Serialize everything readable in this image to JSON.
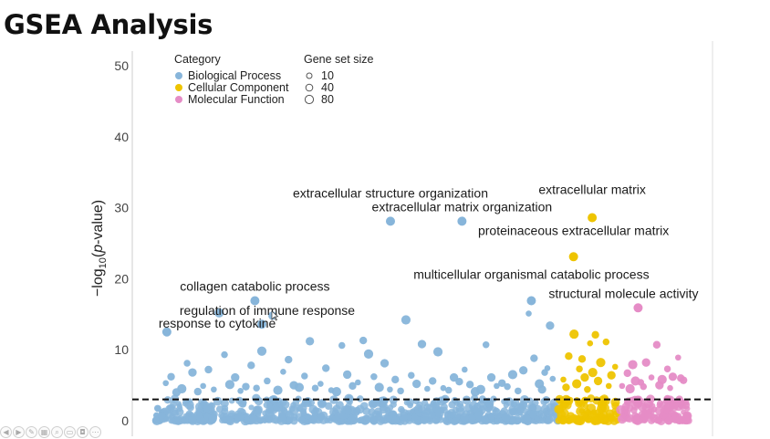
{
  "slide": {
    "title": "GSEA Analysis"
  },
  "colors": {
    "biological_process": "#87b5da",
    "cellular_component": "#eec400",
    "molecular_function": "#e58cc6",
    "threshold_line": "#111111",
    "axis_text": "#444444"
  },
  "player_controls": [
    {
      "name": "previous-icon",
      "glyph": "◀"
    },
    {
      "name": "next-icon",
      "glyph": "▶"
    },
    {
      "name": "pen-icon",
      "glyph": "✎"
    },
    {
      "name": "slides-icon",
      "glyph": "▦"
    },
    {
      "name": "zoom-icon",
      "glyph": "⌕"
    },
    {
      "name": "subtitles-icon",
      "glyph": "▭"
    },
    {
      "name": "camera-icon",
      "glyph": "◘"
    },
    {
      "name": "more-icon",
      "glyph": "⋯"
    }
  ],
  "chart_data": {
    "type": "scatter",
    "title": "",
    "xlabel": "",
    "ylabel_parts": {
      "prefix": "−log",
      "subscript": "10",
      "open": "(",
      "italic": "p",
      "suffix": "-value)"
    },
    "ylim": [
      0,
      50
    ],
    "yticks": [
      "0",
      "10",
      "20",
      "30",
      "40",
      "50"
    ],
    "threshold_y": 3,
    "grid": false,
    "legend": {
      "placement": "top-left",
      "category_title": "Category",
      "categories": [
        "Biological Process",
        "Cellular Component",
        "Molecular Function"
      ],
      "size_title": "Gene set size",
      "sizes": [
        "10",
        "40",
        "80"
      ]
    },
    "groups": [
      {
        "name": "Biological Process",
        "x_range": [
          0,
          0.755
        ],
        "color_key": "biological_process"
      },
      {
        "name": "Cellular Component",
        "x_range": [
          0.755,
          0.868
        ],
        "color_key": "cellular_component"
      },
      {
        "name": "Molecular Function",
        "x_range": [
          0.868,
          1.0
        ],
        "color_key": "molecular_function"
      }
    ],
    "highlighted": [
      {
        "label": "extracellular structure organization",
        "category": "Biological Process",
        "x": 0.441,
        "y": 28.1
      },
      {
        "label": "extracellular matrix organization",
        "category": "Biological Process",
        "x": 0.575,
        "y": 28.1
      },
      {
        "label": "extracellular matrix",
        "category": "Cellular Component",
        "x": 0.819,
        "y": 28.6
      },
      {
        "label": "proteinaceous extracellular matrix",
        "category": "Cellular Component",
        "x": 0.784,
        "y": 23.1
      },
      {
        "label": "multicellular organismal catabolic process",
        "category": "Biological Process",
        "x": 0.705,
        "y": 16.9
      },
      {
        "label": "structural molecule activity",
        "category": "Molecular Function",
        "x": 0.905,
        "y": 15.9
      },
      {
        "label": "collagen catabolic process",
        "category": "Biological Process",
        "x": 0.187,
        "y": 16.9
      },
      {
        "label": "response to cytokine",
        "category": "Biological Process",
        "x": 0.022,
        "y": 12.5
      },
      {
        "label": "regulation of immune response",
        "category": "Biological Process",
        "x": 0.2,
        "y": 13.6
      }
    ],
    "background_points": {
      "Biological Process": [
        [
          0.02,
          5.3
        ],
        [
          0.03,
          6.2
        ],
        [
          0.05,
          4.5
        ],
        [
          0.06,
          8.1
        ],
        [
          0.07,
          6.8
        ],
        [
          0.09,
          4.9
        ],
        [
          0.1,
          7.2
        ],
        [
          0.12,
          15.2
        ],
        [
          0.13,
          9.3
        ],
        [
          0.15,
          6.1
        ],
        [
          0.16,
          4.2
        ],
        [
          0.18,
          7.8
        ],
        [
          0.2,
          9.8
        ],
        [
          0.21,
          5.6
        ],
        [
          0.22,
          14.8
        ],
        [
          0.24,
          6.9
        ],
        [
          0.25,
          8.6
        ],
        [
          0.27,
          4.7
        ],
        [
          0.28,
          6.3
        ],
        [
          0.29,
          11.2
        ],
        [
          0.31,
          5.2
        ],
        [
          0.32,
          7.4
        ],
        [
          0.34,
          4.1
        ],
        [
          0.35,
          10.6
        ],
        [
          0.36,
          6.5
        ],
        [
          0.38,
          5.4
        ],
        [
          0.39,
          11.3
        ],
        [
          0.4,
          9.4
        ],
        [
          0.41,
          6.2
        ],
        [
          0.43,
          8.1
        ],
        [
          0.44,
          4.4
        ],
        [
          0.45,
          5.8
        ],
        [
          0.47,
          14.2
        ],
        [
          0.48,
          6.4
        ],
        [
          0.5,
          10.8
        ],
        [
          0.51,
          4.5
        ],
        [
          0.52,
          5.6
        ],
        [
          0.53,
          9.7
        ],
        [
          0.55,
          4.3
        ],
        [
          0.56,
          6.1
        ],
        [
          0.58,
          7.2
        ],
        [
          0.59,
          5.1
        ],
        [
          0.6,
          4.1
        ],
        [
          0.62,
          10.7
        ],
        [
          0.63,
          6.1
        ],
        [
          0.64,
          4.9
        ],
        [
          0.65,
          5.3
        ],
        [
          0.67,
          6.5
        ],
        [
          0.68,
          4.2
        ],
        [
          0.69,
          7.1
        ],
        [
          0.7,
          15.1
        ],
        [
          0.71,
          8.8
        ],
        [
          0.72,
          5.2
        ],
        [
          0.73,
          6.8
        ],
        [
          0.74,
          13.4
        ],
        [
          0.745,
          5.9
        ],
        [
          0.08,
          4.1
        ],
        [
          0.14,
          5.1
        ],
        [
          0.19,
          4.6
        ],
        [
          0.26,
          5.0
        ],
        [
          0.33,
          4.3
        ],
        [
          0.37,
          4.9
        ],
        [
          0.42,
          4.7
        ],
        [
          0.46,
          4.2
        ],
        [
          0.49,
          5.2
        ],
        [
          0.54,
          4.6
        ],
        [
          0.57,
          5.5
        ],
        [
          0.61,
          4.4
        ],
        [
          0.66,
          4.8
        ],
        [
          0.04,
          4.0
        ],
        [
          0.11,
          4.4
        ],
        [
          0.17,
          4.8
        ],
        [
          0.23,
          4.3
        ],
        [
          0.3,
          4.6
        ],
        [
          0.725,
          4.4
        ],
        [
          0.735,
          7.4
        ]
      ],
      "Cellular Component": [
        [
          0.765,
          5.8
        ],
        [
          0.775,
          9.1
        ],
        [
          0.785,
          12.2
        ],
        [
          0.795,
          7.3
        ],
        [
          0.805,
          6.1
        ],
        [
          0.815,
          10.9
        ],
        [
          0.825,
          12.1
        ],
        [
          0.835,
          8.2
        ],
        [
          0.845,
          11.1
        ],
        [
          0.855,
          6.4
        ],
        [
          0.862,
          7.6
        ],
        [
          0.77,
          4.7
        ],
        [
          0.79,
          5.2
        ],
        [
          0.81,
          4.4
        ],
        [
          0.83,
          5.6
        ],
        [
          0.85,
          4.9
        ],
        [
          0.8,
          8.7
        ],
        [
          0.82,
          6.8
        ]
      ],
      "Molecular Function": [
        [
          0.875,
          4.9
        ],
        [
          0.885,
          6.7
        ],
        [
          0.895,
          7.9
        ],
        [
          0.91,
          5.4
        ],
        [
          0.92,
          8.2
        ],
        [
          0.93,
          6.1
        ],
        [
          0.94,
          10.7
        ],
        [
          0.95,
          5.8
        ],
        [
          0.96,
          7.3
        ],
        [
          0.97,
          6.2
        ],
        [
          0.98,
          8.9
        ],
        [
          0.99,
          5.7
        ],
        [
          0.89,
          4.5
        ],
        [
          0.915,
          4.8
        ],
        [
          0.945,
          5.0
        ],
        [
          0.965,
          4.6
        ],
        [
          0.985,
          6.0
        ],
        [
          0.9,
          5.6
        ]
      ]
    }
  }
}
